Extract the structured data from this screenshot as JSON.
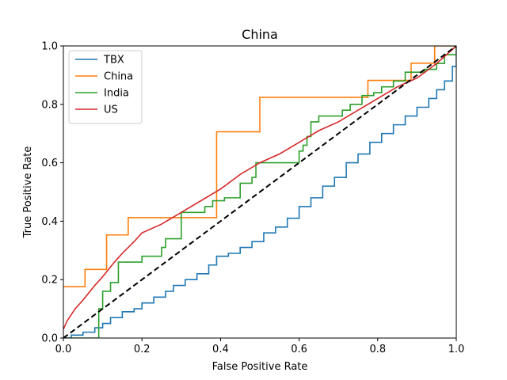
{
  "chart_data": {
    "type": "line",
    "title": "China",
    "xlabel": "False Positive Rate",
    "ylabel": "True Positive Rate",
    "xlim": [
      0,
      1
    ],
    "ylim": [
      0,
      1
    ],
    "x_ticks": [
      "0.0",
      "0.2",
      "0.4",
      "0.6",
      "0.8",
      "1.0"
    ],
    "y_ticks": [
      "0.0",
      "0.2",
      "0.4",
      "0.6",
      "0.8",
      "1.0"
    ],
    "grid": false,
    "legend_position": "upper-left",
    "series": [
      {
        "name": "TBX",
        "color": "#1f77b4",
        "step": true,
        "x": [
          0,
          0.02,
          0.05,
          0.08,
          0.1,
          0.12,
          0.15,
          0.18,
          0.2,
          0.23,
          0.26,
          0.28,
          0.31,
          0.34,
          0.37,
          0.39,
          0.42,
          0.45,
          0.48,
          0.51,
          0.54,
          0.57,
          0.6,
          0.63,
          0.66,
          0.69,
          0.72,
          0.75,
          0.78,
          0.81,
          0.84,
          0.87,
          0.9,
          0.93,
          0.95,
          0.97,
          0.99,
          1.0
        ],
        "y": [
          0,
          0.01,
          0.02,
          0.035,
          0.05,
          0.07,
          0.09,
          0.1,
          0.12,
          0.14,
          0.16,
          0.18,
          0.2,
          0.22,
          0.25,
          0.28,
          0.29,
          0.31,
          0.33,
          0.36,
          0.38,
          0.41,
          0.45,
          0.48,
          0.52,
          0.55,
          0.6,
          0.63,
          0.67,
          0.7,
          0.73,
          0.76,
          0.79,
          0.82,
          0.85,
          0.88,
          0.93,
          1.0
        ]
      },
      {
        "name": "China",
        "color": "#ff7f0e",
        "step": true,
        "x": [
          0,
          0.055,
          0.11,
          0.165,
          0.39,
          0.5,
          0.775,
          0.885,
          0.945,
          1.0
        ],
        "y": [
          0.176,
          0.235,
          0.353,
          0.412,
          0.706,
          0.824,
          0.882,
          0.941,
          1.0,
          1.0
        ]
      },
      {
        "name": "India",
        "color": "#2ca02c",
        "step": true,
        "x": [
          0,
          0.09,
          0.1,
          0.12,
          0.14,
          0.2,
          0.25,
          0.26,
          0.3,
          0.36,
          0.38,
          0.41,
          0.45,
          0.48,
          0.49,
          0.55,
          0.6,
          0.61,
          0.62,
          0.63,
          0.65,
          0.71,
          0.73,
          0.76,
          0.79,
          0.81,
          0.84,
          0.87,
          0.9,
          0.92,
          0.95,
          0.97,
          1.0
        ],
        "y": [
          0,
          0.1,
          0.16,
          0.19,
          0.26,
          0.28,
          0.31,
          0.34,
          0.43,
          0.45,
          0.47,
          0.48,
          0.53,
          0.55,
          0.6,
          0.6,
          0.64,
          0.66,
          0.69,
          0.74,
          0.76,
          0.78,
          0.8,
          0.83,
          0.84,
          0.86,
          0.88,
          0.91,
          0.91,
          0.92,
          0.94,
          0.97,
          1.0
        ]
      },
      {
        "name": "US",
        "color": "#d62728",
        "step": false,
        "x": [
          0,
          0.01,
          0.03,
          0.05,
          0.08,
          0.1,
          0.13,
          0.15,
          0.18,
          0.2,
          0.25,
          0.3,
          0.35,
          0.4,
          0.45,
          0.5,
          0.55,
          0.6,
          0.65,
          0.7,
          0.75,
          0.8,
          0.85,
          0.9,
          0.95,
          1.0
        ],
        "y": [
          0.03,
          0.06,
          0.1,
          0.13,
          0.18,
          0.21,
          0.26,
          0.29,
          0.33,
          0.36,
          0.39,
          0.43,
          0.47,
          0.51,
          0.56,
          0.6,
          0.63,
          0.67,
          0.71,
          0.74,
          0.78,
          0.82,
          0.86,
          0.89,
          0.94,
          1.0
        ]
      }
    ],
    "reference_line": {
      "color": "#000000",
      "dash": true,
      "x": [
        0,
        1
      ],
      "y": [
        0,
        1
      ]
    }
  }
}
